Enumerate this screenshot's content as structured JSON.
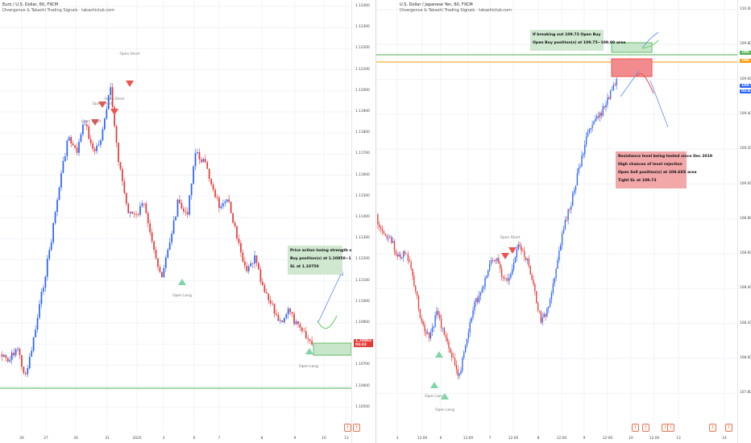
{
  "chart_data": [
    {
      "type": "candlestick",
      "title": "Euro / U.S. Dollar, 60, FXCM",
      "subtitle": "Divergence & Takashi Trading Signals · takashiclub.com",
      "price_axis_ticks": [
        "1.12400",
        "1.12300",
        "1.12200",
        "1.12100",
        "1.12000",
        "1.11900",
        "1.11800",
        "1.11700",
        "1.11600",
        "1.11500",
        "1.11400",
        "1.11300",
        "1.11200",
        "1.11100",
        "1.11000",
        "1.10900",
        "1.10800",
        "1.10700",
        "1.10600",
        "1.10500"
      ],
      "ylim": [
        1.105,
        1.125
      ],
      "time_axis_ticks": [
        "26",
        "27",
        "30",
        "31",
        "2020",
        "3",
        "6",
        "7",
        "8",
        "9",
        "10",
        "13"
      ],
      "last_price": "1.10865",
      "last_price_sub": "03:43",
      "support_level": 1.1071,
      "annotation": [
        "Price action losing strength on down trend",
        "Buy position(s) at 1.10850~1.10800 area",
        "SL at 1.10750"
      ],
      "signals": [
        {
          "label": "Open Short",
          "x_index": 50
        },
        {
          "label": "Open Short",
          "x_index": 42
        },
        {
          "label": "Open Short",
          "x_index": 35
        },
        {
          "label": "Open Short",
          "x_index": 46
        },
        {
          "label": "Open Long",
          "x_index": 80
        },
        {
          "label": "Open Long",
          "x_index": 137
        }
      ]
    },
    {
      "type": "candlestick",
      "title": "U.S. Dollar / Japanese Yen, 60, FXCM",
      "subtitle": "Divergence & Takashi Trading Signals · takashiclub.com",
      "price_axis_ticks": [
        "110.000",
        "109.800",
        "109.600",
        "109.400",
        "109.200",
        "109.000",
        "108.800",
        "108.600",
        "108.400",
        "108.200",
        "108.000",
        "107.800"
      ],
      "ylim": [
        107.7,
        110.05
      ],
      "time_axis_ticks": [
        "3",
        "12:00",
        "6",
        "12:00",
        "7",
        "12:00",
        "8",
        "12:00",
        "9",
        "12:00",
        "10",
        "12:00",
        "13",
        "14"
      ],
      "resistance_level": 109.73,
      "upper_level": 109.76,
      "last_price": "109.545",
      "last_price_sub": "03:43",
      "level_labels": [
        "109.760",
        "109.730"
      ],
      "annotation_top": [
        "If breaking out 109.73 Open Buy",
        "Open Buy position(s) at 109.75~109.80 area"
      ],
      "annotation_bottom": [
        "Resistance level being tested since Dec 2019",
        "High chances of level rejection",
        "Open Sell position(s) at 109.6XX area",
        "Tight SL at 109.73"
      ],
      "signals": [
        {
          "label": "Open Short",
          "x_index": 70
        },
        {
          "label": "Open Long",
          "x_index": 40
        },
        {
          "label": "Open Long",
          "x_index": 45
        }
      ]
    }
  ],
  "colors": {
    "up": "#2962ff",
    "down": "#e53935",
    "grid": "#f0f3fa",
    "support": "#4caf50",
    "resistance": "#ff9800",
    "buy_zone": "#66bb6a",
    "sell_zone": "#ef5350"
  },
  "footer_icons": [
    "flag-icon",
    "news-icon",
    "calendar-icon"
  ]
}
